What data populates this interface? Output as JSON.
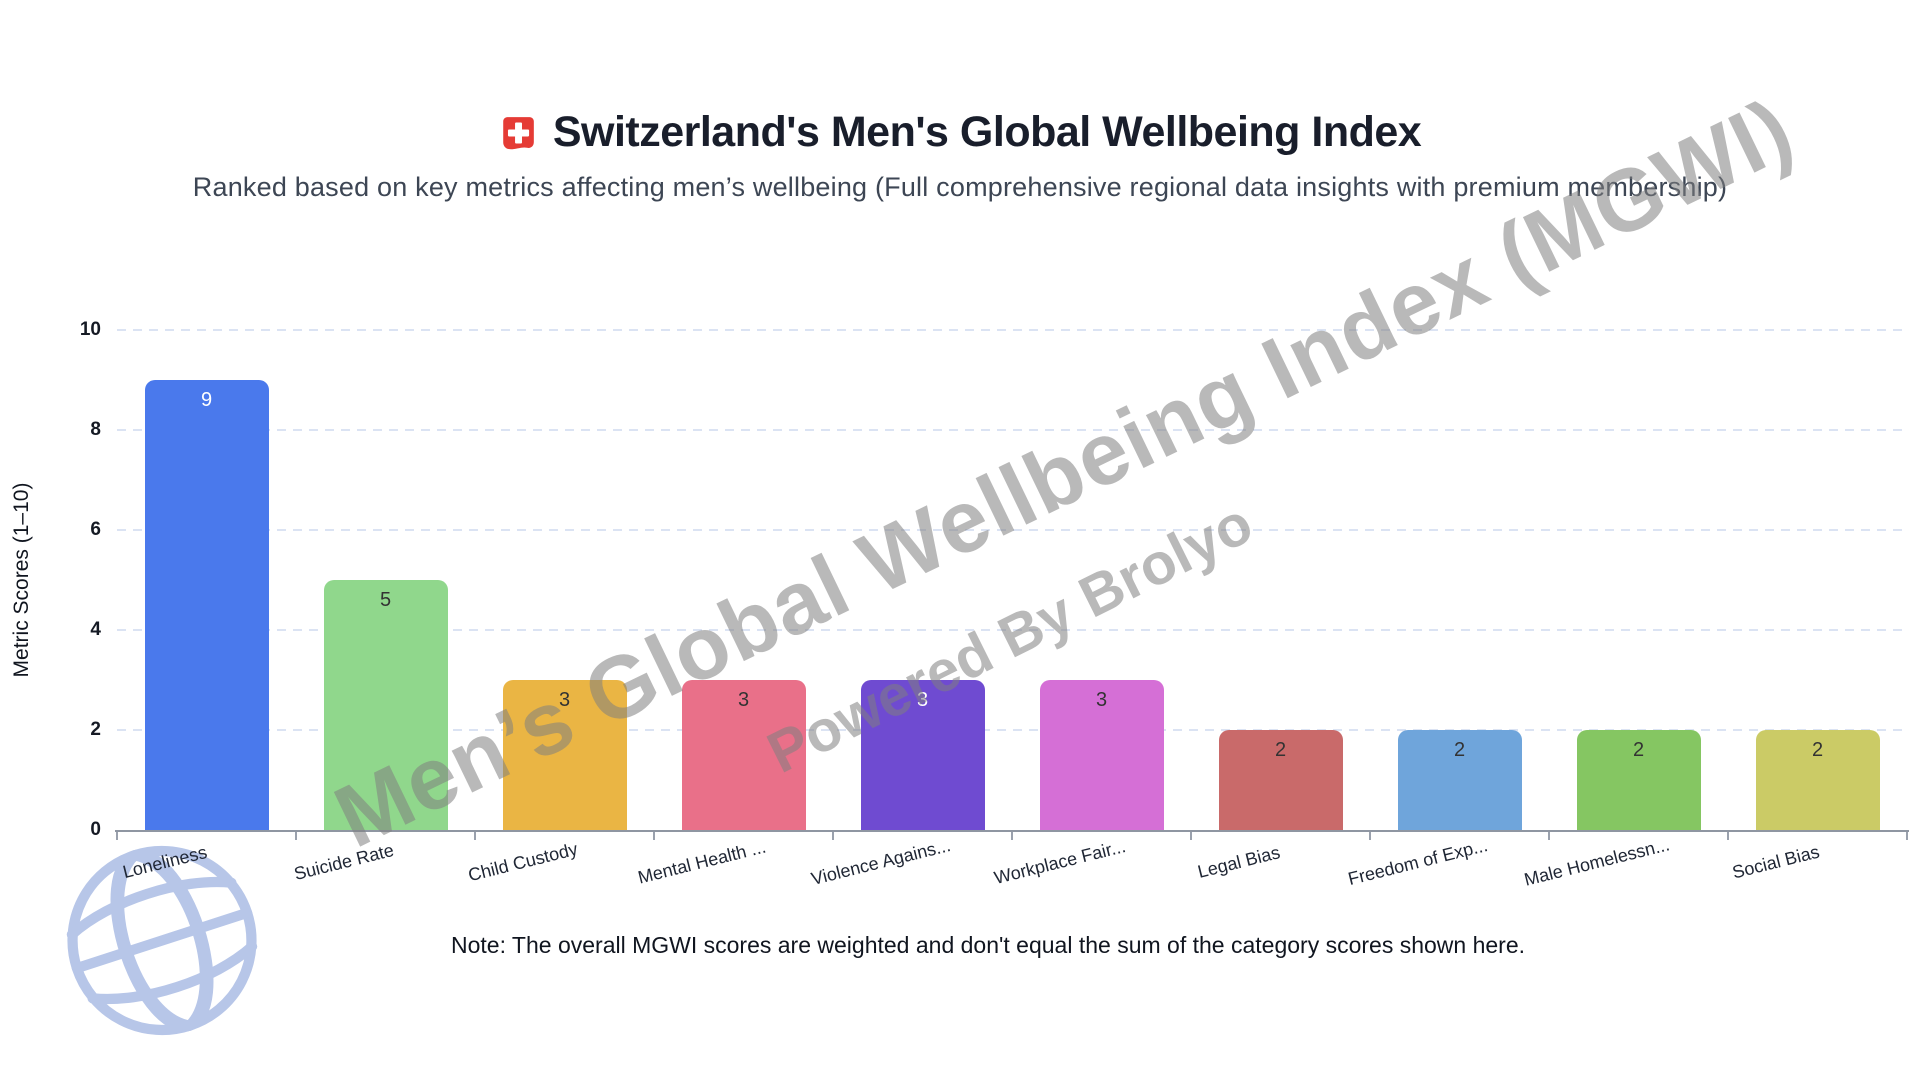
{
  "header": {
    "flag_icon": "swiss-flag",
    "flag_red": "#e53b35",
    "title": "Switzerland's Men's Global Wellbeing Index",
    "subtitle": "Ranked based on key metrics affecting men’s wellbeing (Full comprehensive regional data insights with premium membership)"
  },
  "watermark": {
    "line1": "Men’s Global Wellbeing Index (MGWI)",
    "line2": "Powered By Brolyo"
  },
  "note": "Note: The overall MGWI scores are weighted and don't equal the sum of the category scores shown here.",
  "chart_data": {
    "type": "bar",
    "title": "Switzerland's Men's Global Wellbeing Index",
    "subtitle": "Ranked based on key metrics affecting men’s wellbeing (Full comprehensive regional data insights with premium membership)",
    "xlabel": "",
    "ylabel": "Metric Scores (1–10)",
    "ylim": [
      0,
      10
    ],
    "yticks": [
      0,
      2,
      4,
      6,
      8,
      10
    ],
    "grid": "horizontal dashed",
    "legend": "none",
    "categories": [
      "Loneliness",
      "Suicide Rate",
      "Child Custody",
      "Mental Health ...",
      "Violence Agains...",
      "Workplace Fair...",
      "Legal Bias",
      "Freedom of Exp...",
      "Male Homelessn...",
      "Social Bias"
    ],
    "values": [
      9,
      5,
      3,
      3,
      3,
      3,
      2,
      2,
      2,
      2
    ],
    "bar_colors": [
      "#4a79ec",
      "#90d78c",
      "#eab544",
      "#e97089",
      "#6f4bd1",
      "#d56fd6",
      "#c96a6a",
      "#6fa5db",
      "#85c662",
      "#cbcb66"
    ],
    "value_label_colors": [
      "#ffffff",
      "#333333",
      "#333333",
      "#333333",
      "#ffffff",
      "#333333",
      "#333333",
      "#333333",
      "#333333",
      "#333333"
    ],
    "gridline_color": "#dbe3f3",
    "axis_color": "#8f96a2"
  }
}
